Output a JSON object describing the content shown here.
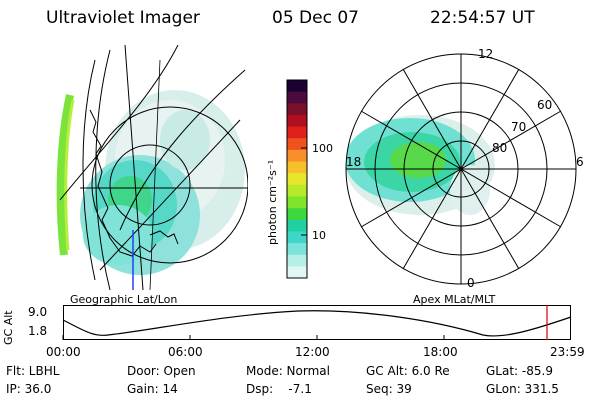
{
  "header": {
    "instrument": "Ultraviolet Imager",
    "date": "05 Dec 07",
    "time": "22:54:57 UT"
  },
  "colorbar": {
    "unit_label": "photon cm⁻²s⁻¹",
    "ticks": [
      "100",
      "10"
    ],
    "colors": [
      "#1a0033",
      "#4b0a3c",
      "#7a0f2a",
      "#b00f1f",
      "#e0201a",
      "#f0521e",
      "#f7902a",
      "#f6c02c",
      "#e6e62a",
      "#b6ea2a",
      "#7ee42c",
      "#3fd83c",
      "#22cfa0",
      "#3ed6c8",
      "#7ce2da",
      "#b6efe8",
      "#e2f7f4"
    ]
  },
  "left_panel": {
    "label": "Geographic Lat/Lon"
  },
  "right_panel": {
    "label": "Apex MLat/MLT",
    "mlt_labels": [
      "12",
      "18",
      "6",
      "0"
    ],
    "lat_labels": [
      "60",
      "70",
      "80"
    ]
  },
  "alt_plot": {
    "ylabel": "GC Alt",
    "yticks": [
      "9.0",
      "1.8"
    ],
    "xticks": [
      "00:00",
      "06:00",
      "12:00",
      "18:00",
      "23:59"
    ],
    "marker_color": "#dd0000"
  },
  "footer": {
    "row1": {
      "flt": "Flt: LBHL",
      "door": "Door: Open",
      "mode": "Mode: Normal",
      "gcalt": "GC Alt: 6.0 Re",
      "glat": "GLat: -85.9"
    },
    "row2": {
      "ip": "IP: 36.0",
      "gain": "Gain: 14",
      "dsp": "Dsp:    -7.1",
      "seq": "Seq: 39",
      "glon": "GLon: 331.5"
    }
  }
}
